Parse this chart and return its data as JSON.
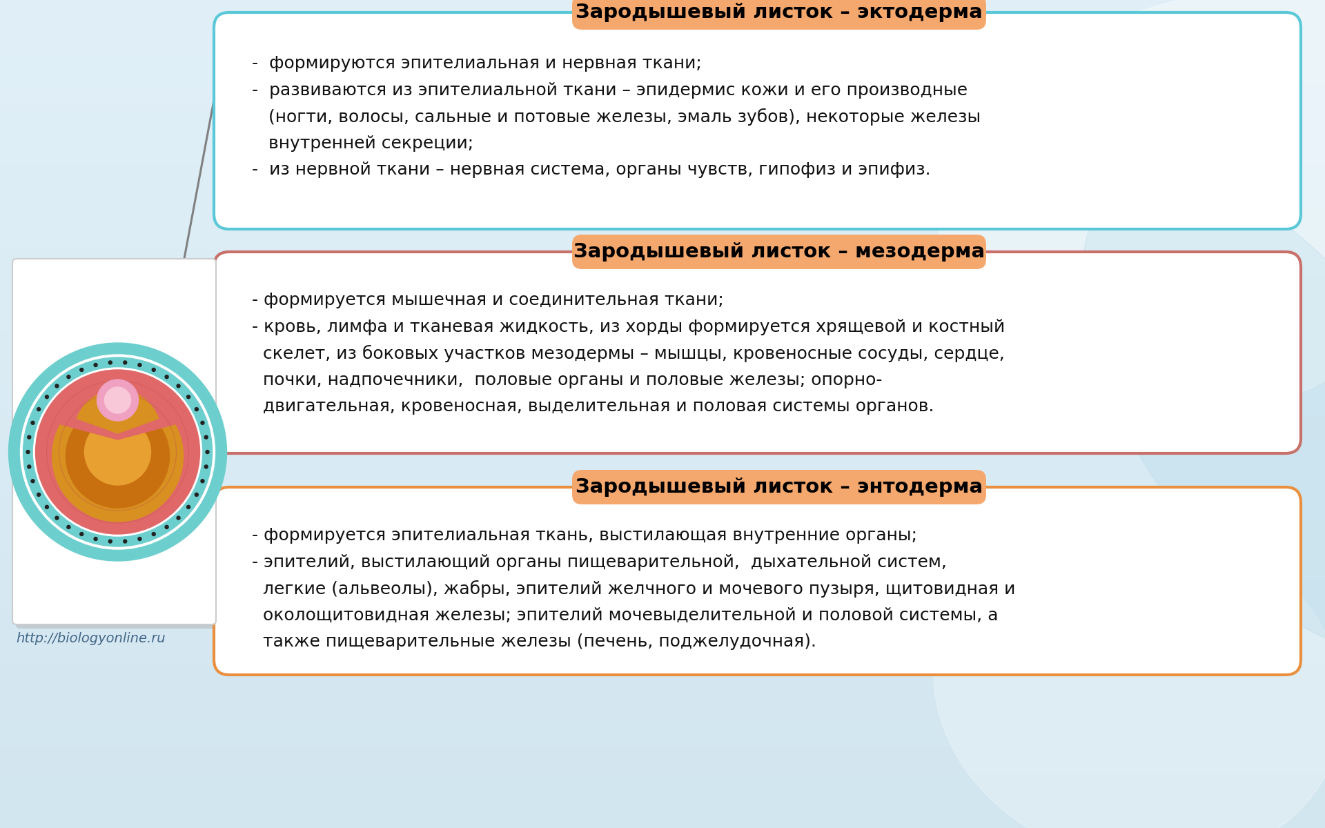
{
  "title1": "Зародышевый листок – эктодерма",
  "title2": "Зародышевый листок – мезодерма",
  "title3": "Зародышевый листок – энтодерма",
  "title_bg": "#f5a86e",
  "title_color": "#000000",
  "box1_border": "#5bc8d8",
  "box2_border": "#c8706a",
  "box3_border": "#e89040",
  "box_bg": "#ffffff",
  "text1_line1": "-  формируются эпителиальная и нервная ткани;",
  "text1_line2": "-  развиваются из эпителиальной ткани – эпидермис кожи и его производные",
  "text1_line3": "   (ногти, волосы, сальные и потовые железы, эмаль зубов), некоторые железы",
  "text1_line4": "   внутренней секреции;",
  "text1_line5": "-  из нервной ткани – нервная система, органы чувств, гипофиз и эпифиз.",
  "text2_line1": "- формируется мышечная и соединительная ткани;",
  "text2_line2": "- кровь, лимфа и тканевая жидкость, из хорды формируется хрящевой и костный",
  "text2_line3": "  скелет, из боковых участков мезодермы – мышцы, кровеносные сосуды, сердце,",
  "text2_line4": "  почки, надпочечники,  половые органы и половые железы; опорно-",
  "text2_line5": "  двигательная, кровеносная, выделительная и половая системы органов.",
  "text3_line1": "- формируется эпителиальная ткань, выстилающая внутренние органы;",
  "text3_line2": "- эпителий, выстилающий органы пищеварительной,  дыхательной систем,",
  "text3_line3": "  легкие (альвеолы), жабры, эпителий желчного и мочевого пузыря, щитовидная и",
  "text3_line4": "  околощитовидная железы; эпителий мочевыделительной и половой системы, а",
  "text3_line5": "  также пищеварительные железы (печень, поджелудочная).",
  "watermark": "http://biologyonline.ru",
  "font_size_title": 21,
  "font_size_text": 18,
  "font_size_watermark": 14,
  "bg_left_color": "#cce8f0",
  "bg_right_color": "#b8dce8"
}
